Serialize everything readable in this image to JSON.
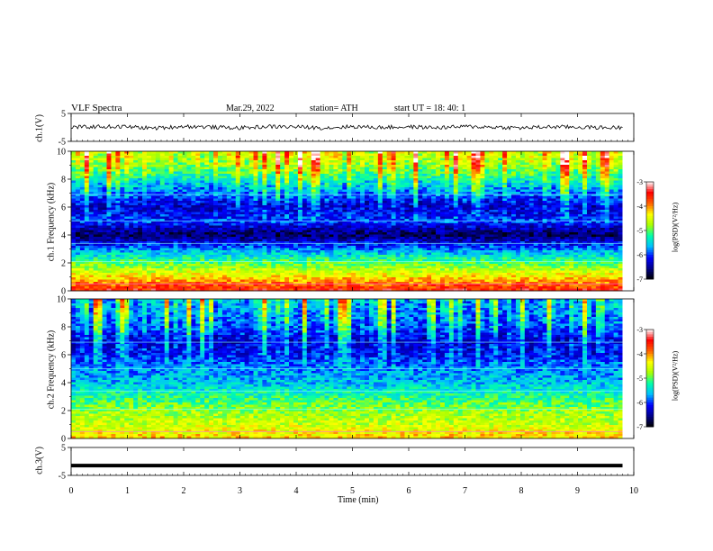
{
  "header": {
    "title": "VLF  Spectra",
    "date": "Mar.29, 2022",
    "station": "station= ATH",
    "start": "start  UT  =   18: 40: 1"
  },
  "chart_data": [
    {
      "type": "line",
      "panel": "ch1-waveform",
      "ylabel": "ch.1(V)",
      "ylim": [
        -5,
        5
      ],
      "yticks": [
        "5",
        "-5"
      ],
      "x_range_min": [
        0,
        9.8
      ],
      "series": [
        {
          "x": [
            0,
            0.5,
            1,
            1.5,
            2,
            2.5,
            3,
            3.5,
            4,
            4.5,
            5,
            5.5,
            6,
            6.5,
            7,
            7.5,
            8,
            8.5,
            9,
            9.5,
            9.8
          ],
          "values": [
            0,
            0.3,
            0.2,
            -0.3,
            0.4,
            0.1,
            -0.2,
            0.3,
            0.2,
            -0.2,
            0.3,
            0,
            0.2,
            -0.1,
            0.3,
            0.1,
            -0.2,
            0.2,
            0.1,
            -0.1,
            0
          ]
        }
      ]
    },
    {
      "type": "heatmap",
      "panel": "ch1-spectrogram",
      "ylabel": "ch.1  Frequency  (kHz)",
      "ylim": [
        0,
        10
      ],
      "yticks": [
        "0",
        "2",
        "4",
        "6",
        "8",
        "10"
      ],
      "xlim_min": [
        0,
        9.8
      ],
      "colorbar": {
        "label": "log(PSD)(V²/Hz)",
        "range": [
          -7,
          -3
        ],
        "ticks": [
          "-3",
          "-4",
          "-5",
          "-6",
          "-7"
        ]
      },
      "band_levels_kHz_by_frequency": {
        "freq": [
          0,
          1,
          2,
          3,
          4,
          5,
          6,
          7,
          8,
          9,
          10
        ],
        "level": [
          -3.5,
          -4.3,
          -5.0,
          -5.8,
          -6.7,
          -6.0,
          -6.4,
          -6.0,
          -5.5,
          -5.0,
          -4.8
        ]
      }
    },
    {
      "type": "heatmap",
      "panel": "ch2-spectrogram",
      "ylabel": "ch.2  Frequency  (kHz)",
      "ylim": [
        0,
        10
      ],
      "yticks": [
        "0",
        "2",
        "4",
        "6",
        "8",
        "10"
      ],
      "xlim_min": [
        0,
        9.8
      ],
      "colorbar": {
        "label": "log(PSD)(V²/Hz)",
        "range": [
          -7,
          -3
        ],
        "ticks": [
          "-3",
          "-4",
          "-5",
          "-6",
          "-7"
        ]
      },
      "band_levels_kHz_by_frequency": {
        "freq": [
          0,
          1,
          2,
          3,
          4,
          5,
          6,
          7,
          8,
          9,
          10
        ],
        "level": [
          -4.2,
          -4.6,
          -4.8,
          -5.2,
          -5.6,
          -5.8,
          -6.2,
          -6.4,
          -6.1,
          -6.0,
          -5.9
        ]
      }
    },
    {
      "type": "line",
      "panel": "ch3-waveform",
      "ylabel": "ch.3(V)",
      "ylim": [
        -5,
        5
      ],
      "yticks": [
        "5",
        "-5"
      ],
      "x_range_min": [
        0,
        9.8
      ],
      "series": [
        {
          "x": [
            0,
            9.8
          ],
          "values": [
            -1.5,
            -1.5
          ]
        }
      ]
    }
  ],
  "xaxis": {
    "label": "Time  (min)",
    "ticks": [
      "0",
      "1",
      "2",
      "3",
      "4",
      "5",
      "6",
      "7",
      "8",
      "9",
      "10"
    ],
    "range": [
      0,
      10
    ]
  },
  "colors": {
    "waveform": "#000000",
    "colormap": [
      "#000000",
      "#00008b",
      "#0000ff",
      "#00bfff",
      "#00ffaa",
      "#aaff00",
      "#ffff00",
      "#ff6000",
      "#ff0000",
      "#ffffff"
    ]
  }
}
